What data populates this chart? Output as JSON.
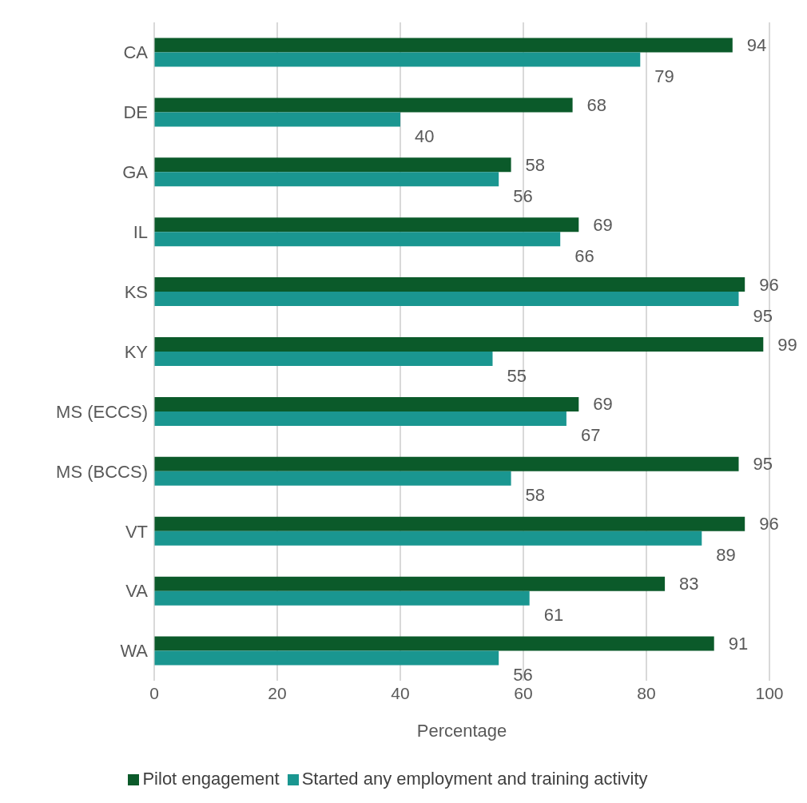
{
  "chart_data": {
    "type": "bar",
    "orientation": "horizontal",
    "xlabel": "Percentage",
    "categories": [
      "CA",
      "DE",
      "GA",
      "IL",
      "KS",
      "KY",
      "MS (ECCS)",
      "MS (BCCS)",
      "VT",
      "VA",
      "WA"
    ],
    "series": [
      {
        "name": "Pilot engagement",
        "color": "#0b5a2a",
        "values": [
          94,
          68,
          58,
          69,
          96,
          99,
          69,
          95,
          96,
          83,
          91
        ]
      },
      {
        "name": "Started any employment and training activity",
        "color": "#1a9690",
        "values": [
          79,
          40,
          56,
          66,
          95,
          55,
          67,
          58,
          89,
          61,
          56
        ]
      }
    ],
    "xlim": [
      0,
      100
    ],
    "xticks": [
      0,
      20,
      40,
      60,
      80,
      100
    ],
    "grid": "x",
    "data_labels": true,
    "legend": "bottom"
  }
}
